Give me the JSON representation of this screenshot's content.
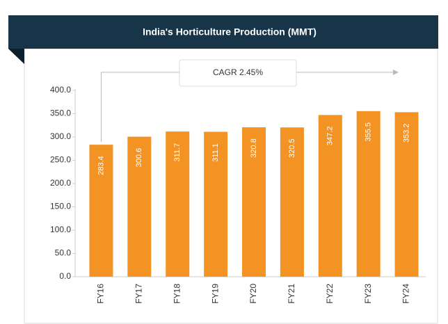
{
  "chart_data": {
    "type": "bar",
    "title": "India's Horticulture Production (MMT)",
    "categories": [
      "FY16",
      "FY17",
      "FY18",
      "FY19",
      "FY20",
      "FY21",
      "FY22",
      "FY23",
      "FY24"
    ],
    "values": [
      283.4,
      300.6,
      311.7,
      311.1,
      320.8,
      320.5,
      347.2,
      355.5,
      353.2
    ],
    "color": "#f39323",
    "ylim": [
      0,
      400
    ],
    "yticks": [
      {
        "value": 0,
        "label": "0.0"
      },
      {
        "value": 50,
        "label": "50.0"
      },
      {
        "value": 100,
        "label": "100.0"
      },
      {
        "value": 150,
        "label": "150.0"
      },
      {
        "value": 200,
        "label": "200.0"
      },
      {
        "value": 250,
        "label": "250.0"
      },
      {
        "value": 300,
        "label": "300.0"
      },
      {
        "value": 350,
        "label": "350.0"
      },
      {
        "value": 400,
        "label": "400.0"
      }
    ],
    "annotation": "CAGR 2.45%",
    "grid": false
  }
}
